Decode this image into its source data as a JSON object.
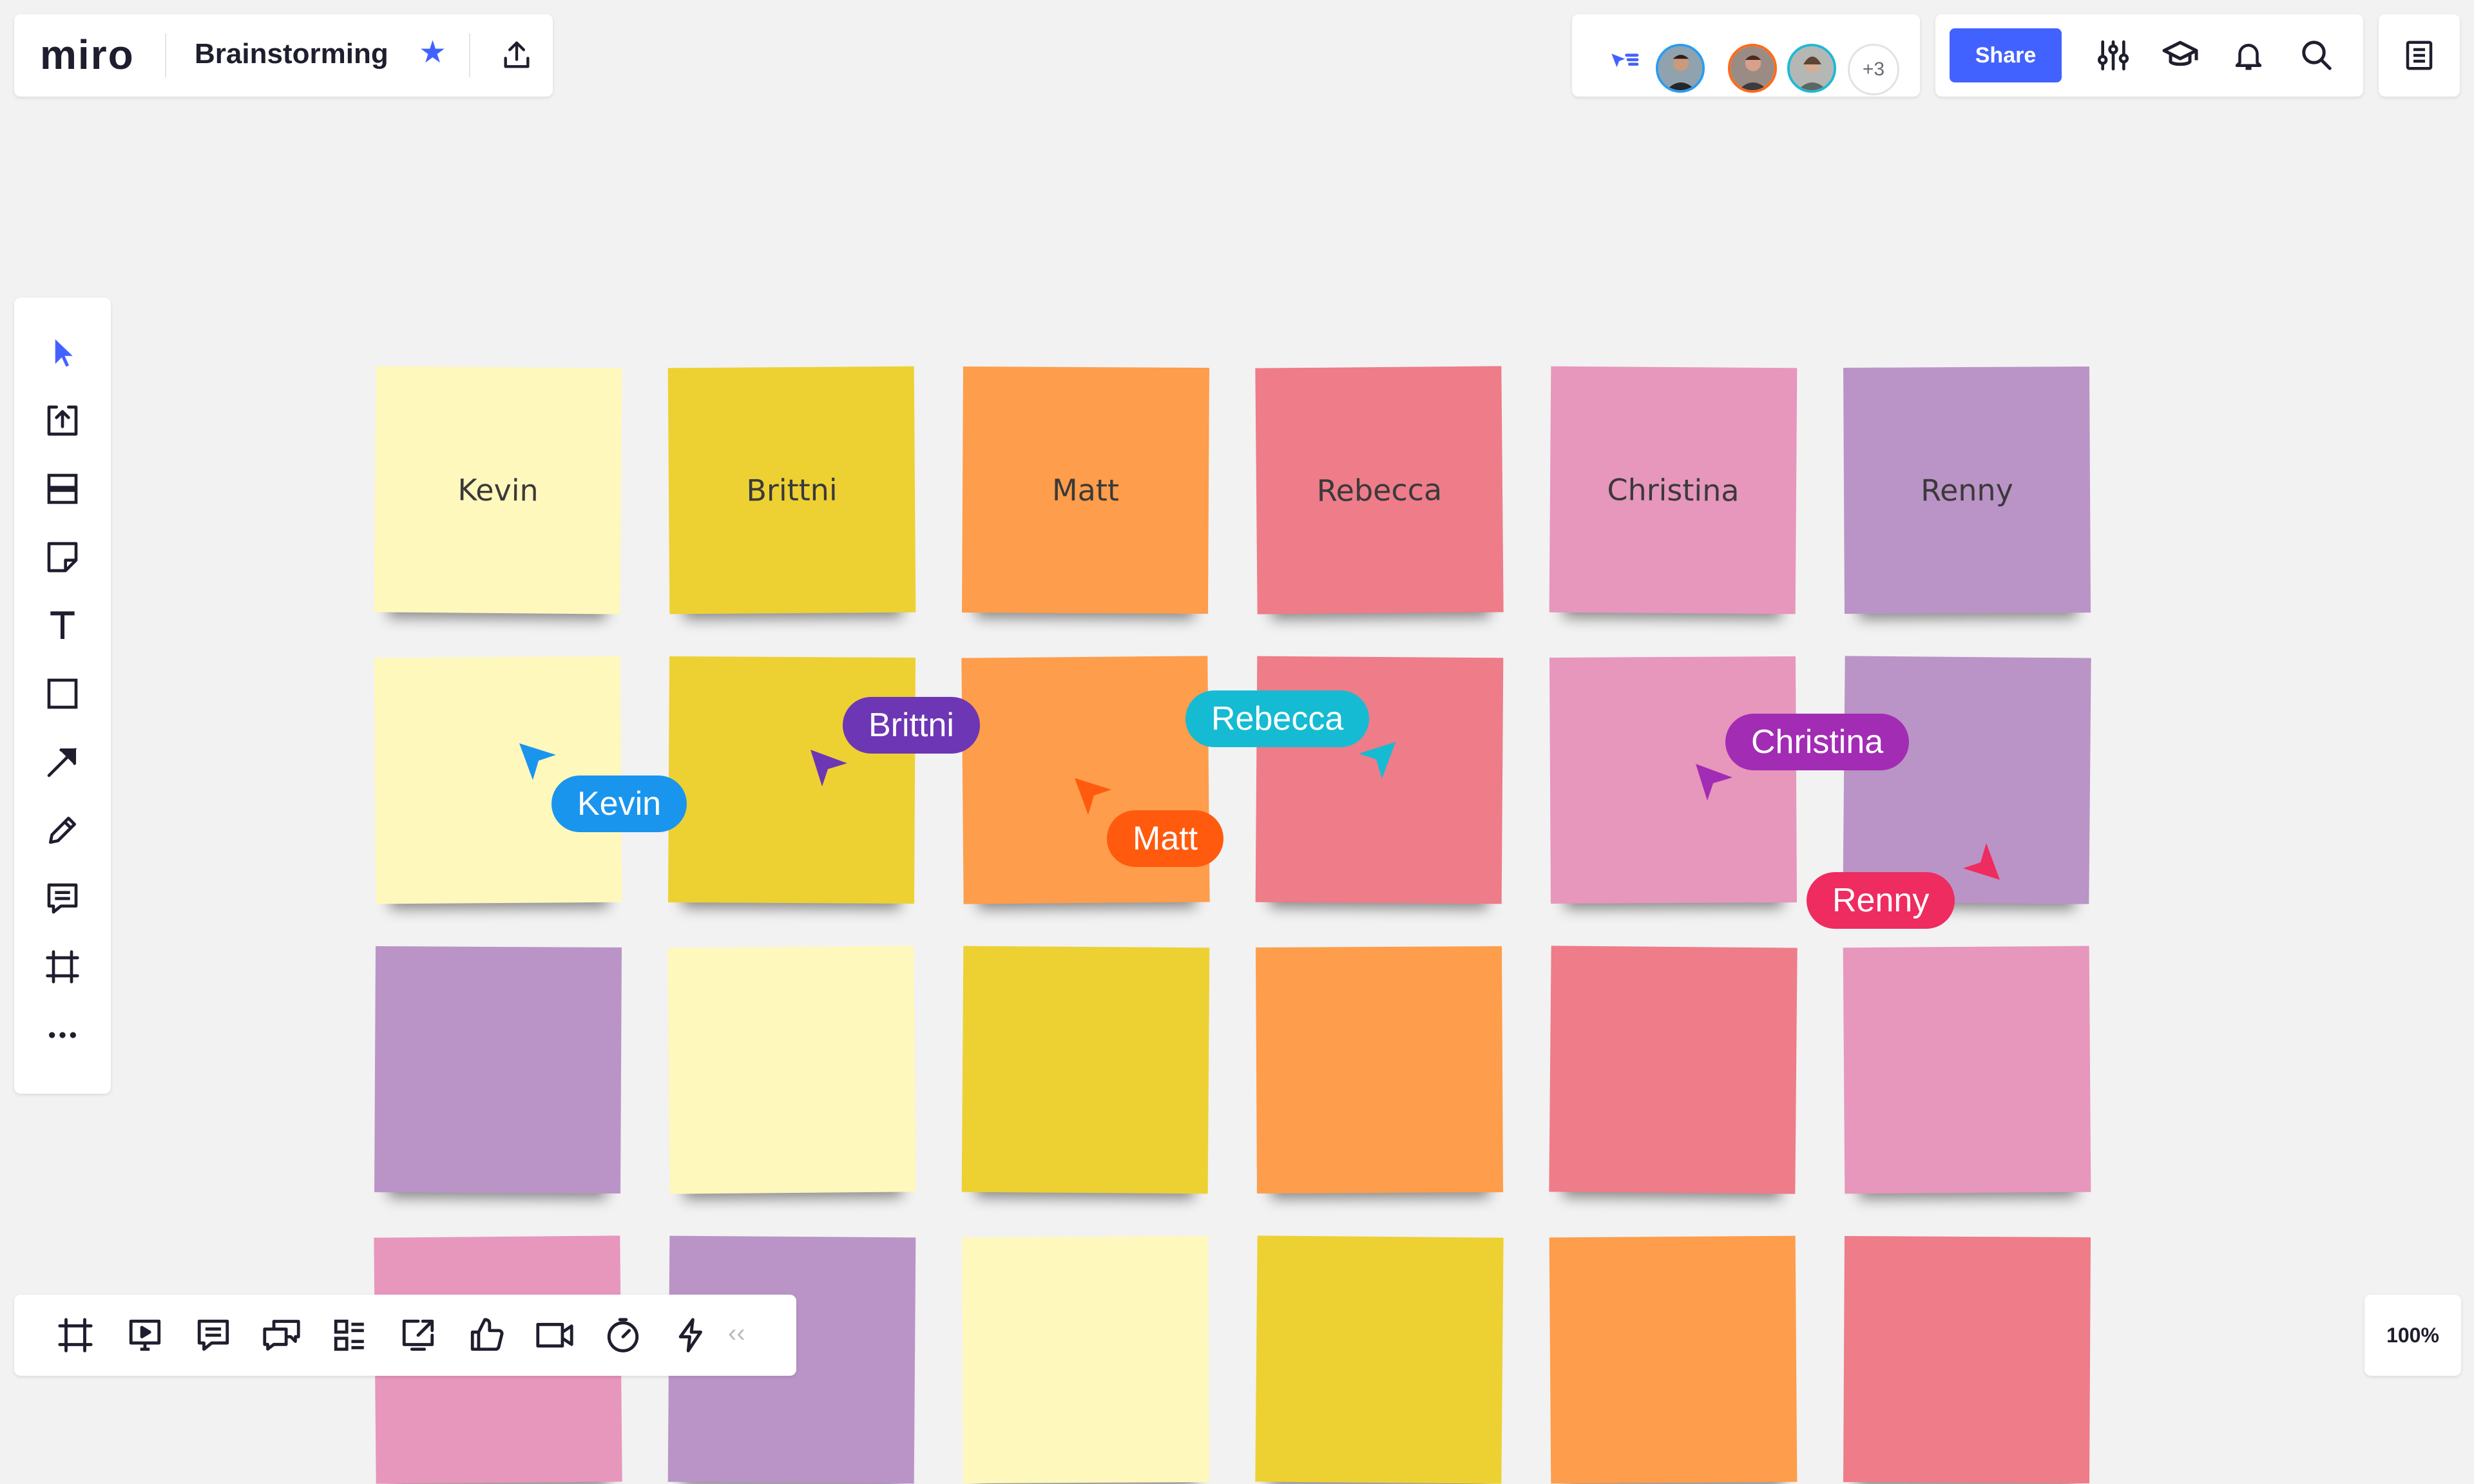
{
  "app": {
    "logo": "miro",
    "board_title": "Brainstorming",
    "star_icon": "star-icon",
    "export_icon": "upload-icon"
  },
  "collaboration": {
    "cursor_follow_icon": "cursor-list-icon",
    "more_count": "+3",
    "avatars": [
      {
        "name": "avatar-1",
        "ring": "#2d9bf0"
      },
      {
        "name": "avatar-2",
        "ring": "#ff6b1a"
      },
      {
        "name": "avatar-3",
        "ring": "#1fb9d4"
      }
    ]
  },
  "toolbar": {
    "share_label": "Share",
    "icons": [
      "settings-sliders-icon",
      "learn-cap-icon",
      "bell-icon",
      "search-icon",
      "notes-icon"
    ]
  },
  "left_tools": [
    "select-icon",
    "upload-icon",
    "templates-icon",
    "sticky-note-icon",
    "text-icon",
    "shape-icon",
    "arrow-icon",
    "pen-icon",
    "comment-icon",
    "frame-icon",
    "more-icon"
  ],
  "bottom_tools": [
    "frames-icon",
    "present-icon",
    "comments-icon",
    "chat-icon",
    "cards-icon",
    "share-screen-icon",
    "voting-icon",
    "video-icon",
    "timer-icon",
    "lightning-icon"
  ],
  "collapse_label": "‹‹",
  "zoom": "100%",
  "colors": {
    "light_yellow": "#fff8bd",
    "yellow": "#edd133",
    "orange": "#fe9d4b",
    "red": "#ee7c89",
    "pink": "#e796bc",
    "violet": "#ba94c6",
    "accent": "#4262ff"
  },
  "stickies": [
    {
      "text": "Kevin",
      "color": "#fff8bd"
    },
    {
      "text": "Brittni",
      "color": "#edd133"
    },
    {
      "text": "Matt",
      "color": "#fe9d4b"
    },
    {
      "text": "Rebecca",
      "color": "#ee7c89"
    },
    {
      "text": "Christina",
      "color": "#e796bc"
    },
    {
      "text": "Renny",
      "color": "#ba94c6"
    },
    {
      "text": "",
      "color": "#fff8bd"
    },
    {
      "text": "",
      "color": "#edd133"
    },
    {
      "text": "",
      "color": "#fe9d4b"
    },
    {
      "text": "",
      "color": "#ee7c89"
    },
    {
      "text": "",
      "color": "#e796bc"
    },
    {
      "text": "",
      "color": "#ba94c6"
    },
    {
      "text": "",
      "color": "#ba94c6"
    },
    {
      "text": "",
      "color": "#fff8bd"
    },
    {
      "text": "",
      "color": "#edd133"
    },
    {
      "text": "",
      "color": "#fe9d4b"
    },
    {
      "text": "",
      "color": "#ee7c89"
    },
    {
      "text": "",
      "color": "#e796bc"
    },
    {
      "text": "",
      "color": "#e796bc"
    },
    {
      "text": "",
      "color": "#ba94c6"
    },
    {
      "text": "",
      "color": "#fff8bd"
    },
    {
      "text": "",
      "color": "#edd133"
    },
    {
      "text": "",
      "color": "#fe9d4b"
    },
    {
      "text": "",
      "color": "#ee7c89"
    }
  ],
  "cursors": [
    {
      "name": "Kevin",
      "color": "#1a95ee"
    },
    {
      "name": "Brittni",
      "color": "#6d36b4"
    },
    {
      "name": "Matt",
      "color": "#ff5a0e"
    },
    {
      "name": "Rebecca",
      "color": "#15bbd3"
    },
    {
      "name": "Christina",
      "color": "#a22cb4"
    },
    {
      "name": "Renny",
      "color": "#ee2c60"
    }
  ]
}
